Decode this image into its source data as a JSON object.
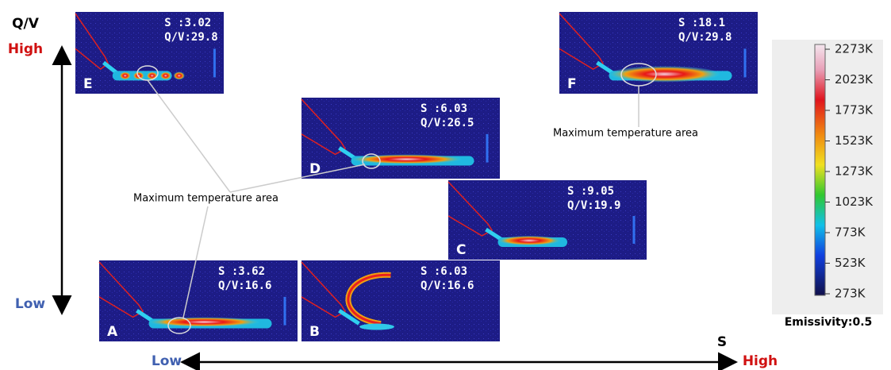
{
  "axes": {
    "y": {
      "title": "Q/V",
      "high": "High",
      "low": "Low"
    },
    "x": {
      "title": "S",
      "low": "Low",
      "high": "High"
    }
  },
  "panels": [
    {
      "label": "E",
      "s": "S   :3.02",
      "qv": "Q/V:29.8"
    },
    {
      "label": "F",
      "s": "S   :18.1",
      "qv": "Q/V:29.8"
    },
    {
      "label": "D",
      "s": "S   :6.03",
      "qv": "Q/V:26.5"
    },
    {
      "label": "C",
      "s": "S   :9.05",
      "qv": "Q/V:19.9"
    },
    {
      "label": "A",
      "s": "S   :3.62",
      "qv": "Q/V:16.6"
    },
    {
      "label": "B",
      "s": "S   :6.03",
      "qv": "Q/V:16.6"
    }
  ],
  "annotations": [
    "Maximum temperature area",
    "Maximum temperature area"
  ],
  "colorbar": {
    "labels": [
      "2273K",
      "2023K",
      "1773K",
      "1523K",
      "1273K",
      "1023K",
      "773K",
      "523K",
      "273K"
    ],
    "caption": "Emissivity:0.5"
  }
}
